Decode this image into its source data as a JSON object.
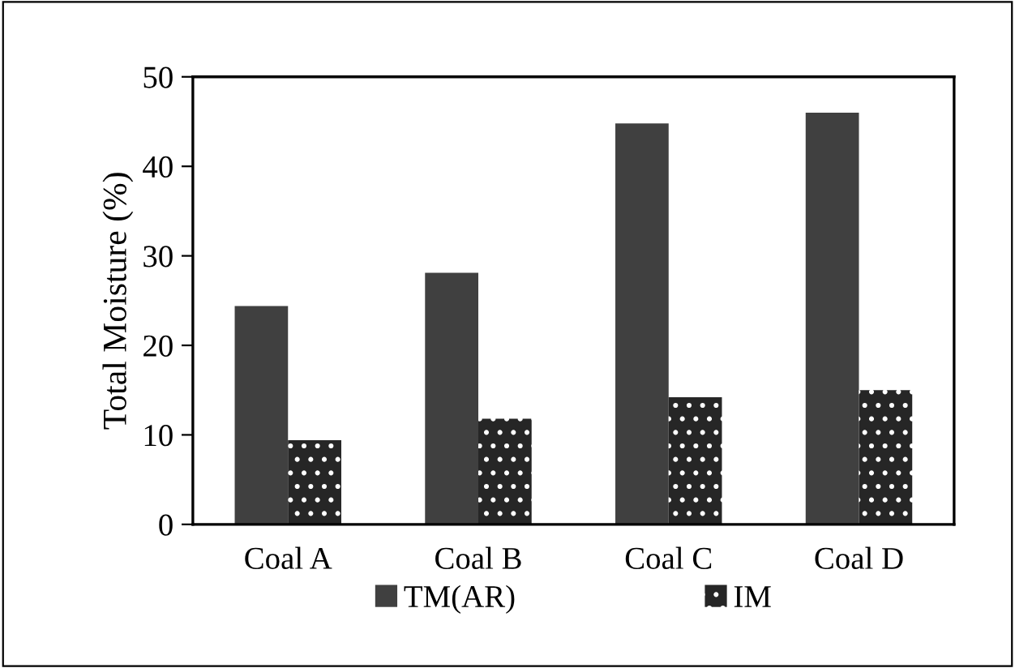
{
  "chart_data": {
    "type": "bar",
    "ylabel": "Total Moisture (%)",
    "categories": [
      "Coal A",
      "Coal B",
      "Coal C",
      "Coal D"
    ],
    "series": [
      {
        "name": "TM(AR)",
        "color": "#404040",
        "values": [
          24.4,
          28.1,
          44.8,
          46.0
        ]
      },
      {
        "name": "IM",
        "color": "#262626",
        "values": [
          9.4,
          11.8,
          14.2,
          15.0
        ]
      }
    ],
    "ylim": [
      0,
      50
    ],
    "yticks": [
      0,
      10,
      20,
      30,
      40,
      50
    ],
    "grid": false,
    "legend": "bottom"
  }
}
